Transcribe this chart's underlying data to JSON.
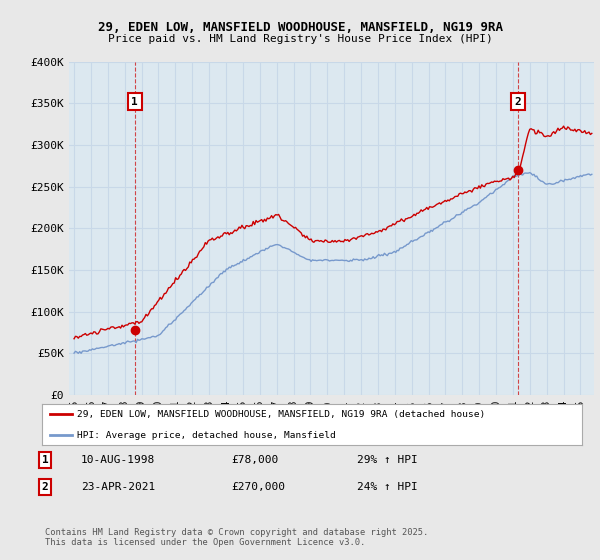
{
  "title": "29, EDEN LOW, MANSFIELD WOODHOUSE, MANSFIELD, NG19 9RA",
  "subtitle": "Price paid vs. HM Land Registry's House Price Index (HPI)",
  "background_color": "#e8e8e8",
  "plot_bg_color": "#dce8f0",
  "ylim": [
    0,
    400000
  ],
  "yticks": [
    0,
    50000,
    100000,
    150000,
    200000,
    250000,
    300000,
    350000,
    400000
  ],
  "ytick_labels": [
    "£0",
    "£50K",
    "£100K",
    "£150K",
    "£200K",
    "£250K",
    "£300K",
    "£350K",
    "£400K"
  ],
  "grid_color": "#c8d8e8",
  "sale1_date": "10-AUG-1998",
  "sale1_price": "78,000",
  "sale1_hpi": "29% ↑ HPI",
  "sale2_date": "23-APR-2021",
  "sale2_price": "270,000",
  "sale2_hpi": "24% ↑ HPI",
  "legend_line1": "29, EDEN LOW, MANSFIELD WOODHOUSE, MANSFIELD, NG19 9RA (detached house)",
  "legend_line2": "HPI: Average price, detached house, Mansfield",
  "footer": "Contains HM Land Registry data © Crown copyright and database right 2025.\nThis data is licensed under the Open Government Licence v3.0.",
  "red_color": "#cc0000",
  "blue_color": "#7799cc",
  "marker1_x": 1998.6,
  "marker1_y": 78000,
  "marker2_x": 2021.3,
  "marker2_y": 270000,
  "xmin": 1994.7,
  "xmax": 2025.8
}
